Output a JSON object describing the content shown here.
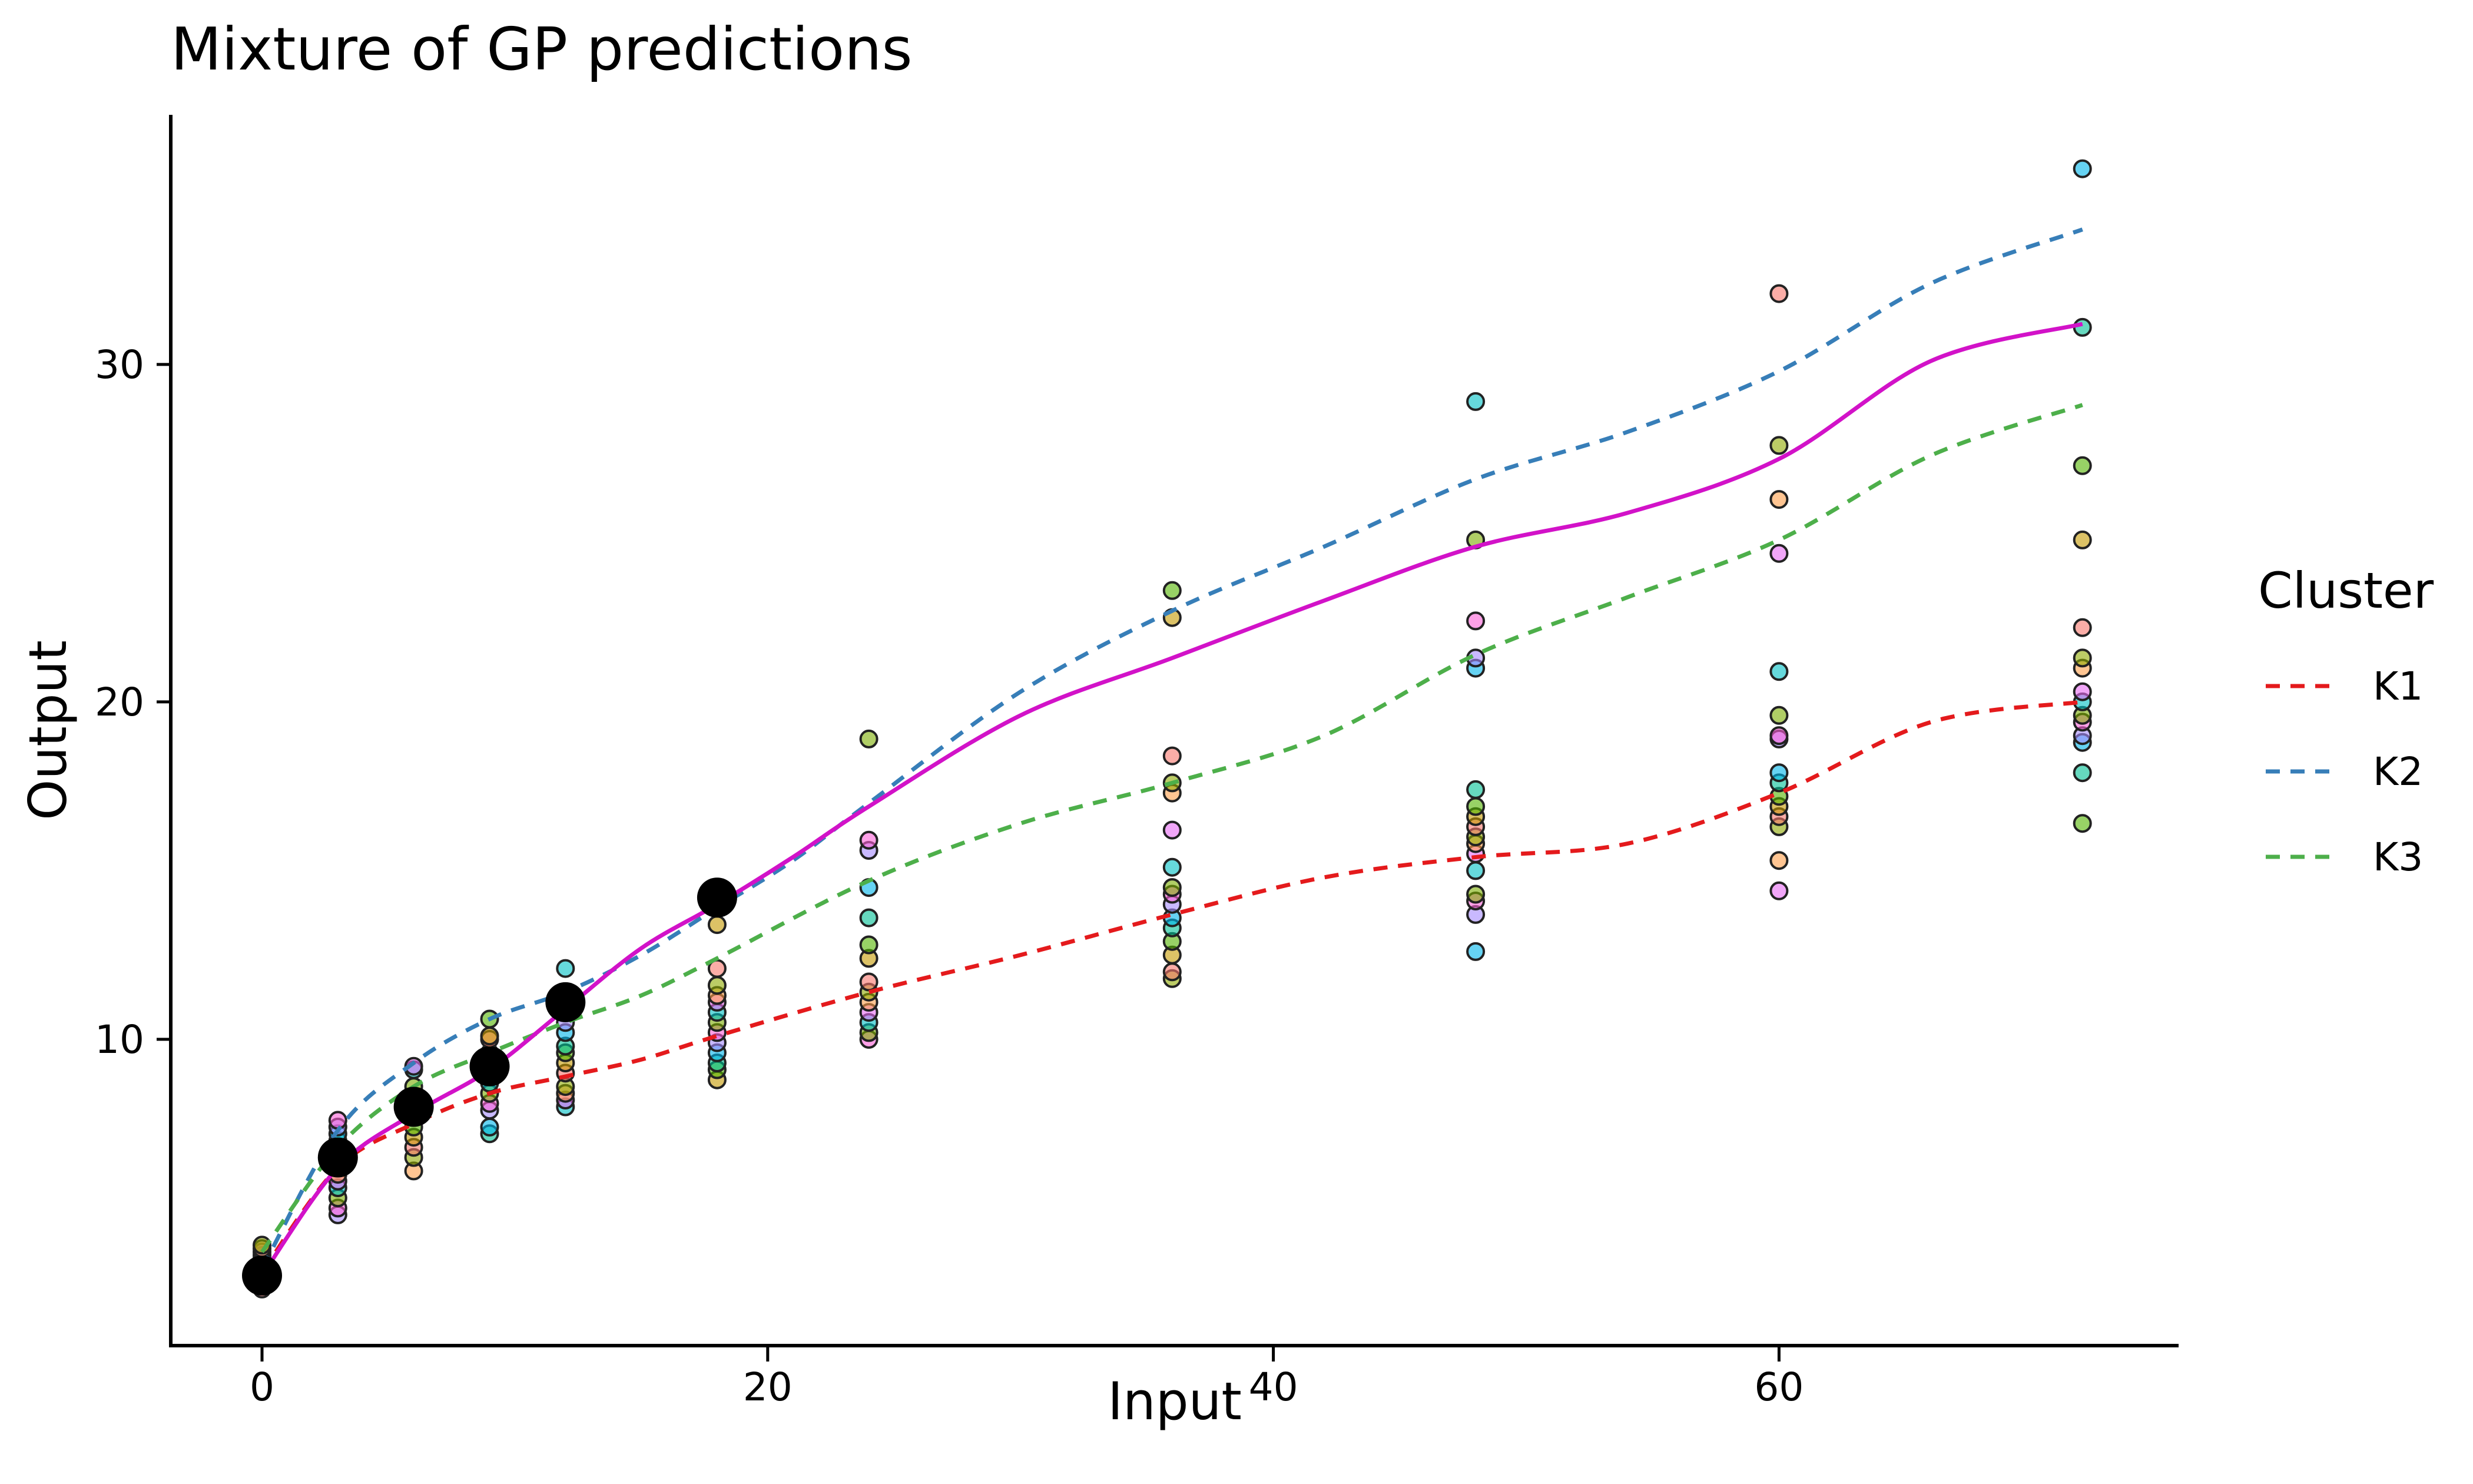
{
  "chart_data": {
    "type": "line",
    "title": "Mixture of GP predictions",
    "xlabel": "Input",
    "ylabel": "Output",
    "xlim": [
      -4.5,
      75
    ],
    "ylim": [
      0.9,
      37.5
    ],
    "xticks": [
      0,
      20,
      40,
      60
    ],
    "yticks": [
      10,
      20,
      30
    ],
    "grid": false,
    "legend": {
      "title": "Cluster",
      "position": "right",
      "entries": [
        {
          "label": "K1",
          "color": "#E41A1C",
          "dash": "dashed"
        },
        {
          "label": "K2",
          "color": "#377EB8",
          "dash": "dashed"
        },
        {
          "label": "K3",
          "color": "#4DAF4A",
          "dash": "dashed"
        }
      ]
    },
    "series": [
      {
        "name": "K1",
        "color": "#E41A1C",
        "dash": "dashed",
        "x": [
          0,
          3,
          6,
          9,
          12,
          15,
          18,
          24,
          30,
          36,
          42,
          48,
          54,
          60,
          66,
          72
        ],
        "y": [
          3.1,
          6.2,
          7.5,
          8.4,
          8.9,
          9.4,
          10.1,
          11.4,
          12.5,
          13.7,
          14.8,
          15.4,
          15.8,
          17.3,
          19.4,
          20.0
        ]
      },
      {
        "name": "K2",
        "color": "#377EB8",
        "dash": "dashed",
        "x": [
          0,
          3,
          6,
          9,
          12,
          15,
          18,
          21,
          24,
          30,
          36,
          42,
          48,
          54,
          60,
          66,
          72
        ],
        "y": [
          3.2,
          7.3,
          9.3,
          10.6,
          11.4,
          12.5,
          13.9,
          15.3,
          17.0,
          20.3,
          22.7,
          24.6,
          26.6,
          28.0,
          29.8,
          32.4,
          34.0
        ]
      },
      {
        "name": "K3",
        "color": "#4DAF4A",
        "dash": "dashed",
        "x": [
          0,
          3,
          6,
          9,
          12,
          15,
          18,
          24,
          30,
          36,
          42,
          48,
          54,
          60,
          66,
          72
        ],
        "y": [
          3.7,
          6.8,
          8.6,
          9.6,
          10.5,
          11.3,
          12.4,
          14.7,
          16.4,
          17.6,
          19.0,
          21.4,
          23.1,
          24.8,
          27.3,
          28.8
        ]
      },
      {
        "color": "#D212C8",
        "dash": "solid",
        "x": [
          0,
          3,
          6,
          9,
          12,
          15,
          18,
          21,
          24,
          30,
          36,
          42,
          48,
          54,
          60,
          66,
          72
        ],
        "y": [
          3.0,
          6.2,
          7.8,
          9.1,
          10.9,
          12.7,
          14.0,
          15.4,
          16.9,
          19.6,
          21.3,
          23.0,
          24.6,
          25.6,
          27.2,
          30.1,
          31.2
        ]
      }
    ],
    "observed_points": {
      "color": "#000000",
      "x": [
        0,
        3,
        6,
        9,
        12,
        18
      ],
      "y": [
        3.0,
        6.5,
        8.0,
        9.2,
        11.1,
        14.2
      ]
    },
    "training_points": {
      "palette": [
        "#F8766D",
        "#C49A00",
        "#53B400",
        "#00C094",
        "#00B6EB",
        "#A58AFF",
        "#FB61D7",
        "#7CAE00",
        "#00BFC4",
        "#E76BF3",
        "#FF9E4A",
        "#8FAA00"
      ],
      "groups": [
        {
          "x": 0,
          "y": [
            2.6,
            2.8,
            3.0,
            3.1,
            3.2,
            3.3,
            3.4,
            3.5,
            3.6,
            3.7,
            3.8,
            3.9
          ]
        },
        {
          "x": 3,
          "y": [
            4.8,
            5.0,
            5.3,
            5.6,
            5.8,
            6.0,
            6.2,
            6.4,
            6.6,
            6.8,
            7.0,
            7.2,
            7.4,
            7.6
          ]
        },
        {
          "x": 6,
          "y": [
            6.1,
            6.5,
            6.8,
            7.1,
            7.4,
            7.7,
            7.9,
            8.1,
            8.3,
            8.6,
            9.1,
            9.2
          ]
        },
        {
          "x": 9,
          "y": [
            7.2,
            7.4,
            7.9,
            8.1,
            8.4,
            8.7,
            9.0,
            9.3,
            9.6,
            10.0,
            10.1,
            10.6
          ]
        },
        {
          "x": 12,
          "y": [
            8.0,
            8.2,
            8.4,
            8.6,
            9.0,
            9.3,
            9.6,
            9.8,
            10.2,
            10.5,
            11.0,
            11.3,
            12.1
          ]
        },
        {
          "x": 18,
          "y": [
            8.8,
            9.1,
            9.3,
            9.6,
            9.9,
            10.2,
            10.5,
            10.8,
            11.1,
            11.3,
            11.6,
            12.1,
            13.4
          ]
        },
        {
          "x": 24,
          "y": [
            10.0,
            10.2,
            10.5,
            10.8,
            11.1,
            11.4,
            11.7,
            12.4,
            12.8,
            13.6,
            14.5,
            15.6,
            15.9,
            18.9
          ]
        },
        {
          "x": 36,
          "y": [
            11.8,
            12.0,
            12.5,
            12.9,
            13.3,
            13.6,
            14.0,
            14.3,
            14.5,
            15.1,
            16.2,
            17.3,
            17.6,
            18.4,
            22.5,
            23.3
          ]
        },
        {
          "x": 48,
          "y": [
            12.6,
            13.7,
            14.1,
            14.3,
            15.0,
            15.5,
            15.8,
            16.0,
            16.3,
            16.6,
            16.9,
            17.4,
            21.0,
            21.3,
            22.4,
            24.8,
            28.9
          ]
        },
        {
          "x": 60,
          "y": [
            14.4,
            15.3,
            16.3,
            16.6,
            16.9,
            17.2,
            17.6,
            17.9,
            18.9,
            19.0,
            19.6,
            20.9,
            24.4,
            26.0,
            27.6,
            32.1
          ]
        },
        {
          "x": 72,
          "y": [
            16.4,
            17.9,
            18.8,
            19.0,
            19.4,
            19.6,
            20.0,
            20.3,
            21.0,
            21.3,
            22.2,
            24.8,
            27.0,
            31.1,
            35.8
          ]
        }
      ]
    }
  }
}
